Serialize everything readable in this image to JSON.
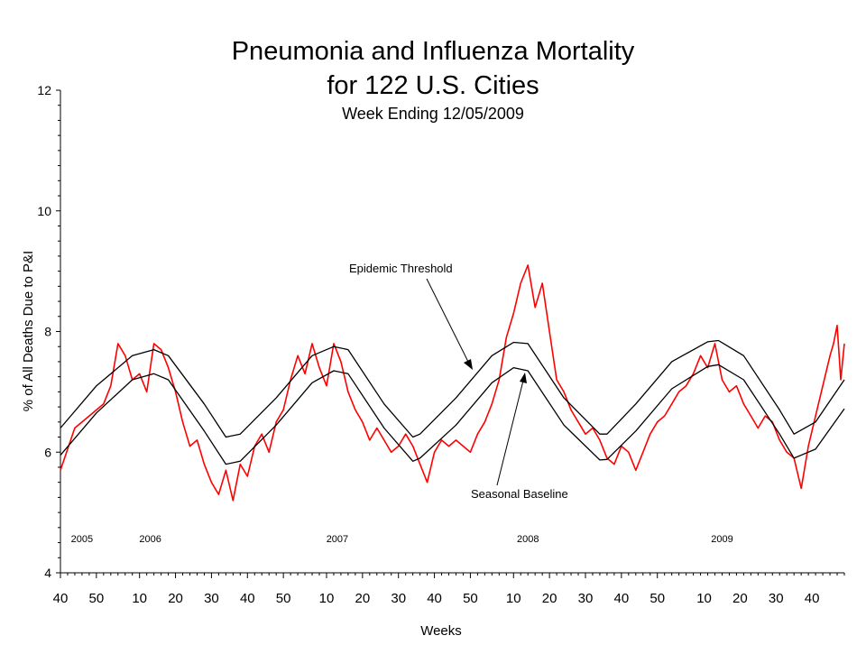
{
  "chart_data": {
    "type": "line",
    "title": "Pneumonia and Influenza Mortality",
    "title_line2": "for 122 U.S. Cities",
    "subtitle": "Week Ending 12/05/2009",
    "xlabel": "Weeks",
    "ylabel": "% of All Deaths Due to P&I",
    "ylim": [
      4,
      12
    ],
    "y_ticks": [
      "4",
      "6",
      "8",
      "10",
      "12"
    ],
    "x_range_week_index": [
      0,
      218
    ],
    "x_ticks": [
      {
        "label": "40",
        "week_index": 0
      },
      {
        "label": "50",
        "week_index": 10
      },
      {
        "label": "10",
        "week_index": 22
      },
      {
        "label": "20",
        "week_index": 32
      },
      {
        "label": "30",
        "week_index": 42
      },
      {
        "label": "40",
        "week_index": 52
      },
      {
        "label": "50",
        "week_index": 62
      },
      {
        "label": "10",
        "week_index": 74
      },
      {
        "label": "20",
        "week_index": 84
      },
      {
        "label": "30",
        "week_index": 94
      },
      {
        "label": "40",
        "week_index": 104
      },
      {
        "label": "50",
        "week_index": 114
      },
      {
        "label": "10",
        "week_index": 126
      },
      {
        "label": "20",
        "week_index": 136
      },
      {
        "label": "30",
        "week_index": 146
      },
      {
        "label": "40",
        "week_index": 156
      },
      {
        "label": "50",
        "week_index": 166
      },
      {
        "label": "10",
        "week_index": 179
      },
      {
        "label": "20",
        "week_index": 189
      },
      {
        "label": "30",
        "week_index": 199
      },
      {
        "label": "40",
        "week_index": 209
      }
    ],
    "year_labels": [
      {
        "label": "2005",
        "week_index": 6
      },
      {
        "label": "2006",
        "week_index": 25
      },
      {
        "label": "2007",
        "week_index": 77
      },
      {
        "label": "2008",
        "week_index": 130
      },
      {
        "label": "2009",
        "week_index": 184
      }
    ],
    "annotations": {
      "epidemic_threshold": "Epidemic Threshold",
      "seasonal_baseline": "Seasonal Baseline"
    },
    "colors": {
      "observed": "#ff0000",
      "threshold": "#000000",
      "baseline": "#000000"
    },
    "series": [
      {
        "key": "observed",
        "x": [
          0,
          4,
          8,
          12,
          14,
          16,
          18,
          20,
          22,
          24,
          26,
          28,
          30,
          32,
          34,
          36,
          38,
          40,
          42,
          44,
          46,
          48,
          50,
          52,
          54,
          56,
          58,
          60,
          62,
          64,
          66,
          68,
          70,
          72,
          74,
          76,
          78,
          80,
          82,
          84,
          86,
          88,
          90,
          92,
          94,
          96,
          98,
          100,
          102,
          104,
          106,
          108,
          110,
          112,
          114,
          116,
          118,
          120,
          122,
          124,
          126,
          128,
          130,
          132,
          134,
          136,
          138,
          140,
          142,
          144,
          146,
          148,
          150,
          152,
          154,
          156,
          158,
          160,
          162,
          164,
          166,
          168,
          170,
          172,
          174,
          176,
          178,
          180,
          182,
          184,
          186,
          188,
          190,
          192,
          194,
          196,
          198,
          200,
          202,
          204,
          206,
          208,
          210,
          212,
          214,
          215,
          216,
          217,
          218
        ],
        "values": [
          5.7,
          6.4,
          6.6,
          6.8,
          7.1,
          7.8,
          7.6,
          7.2,
          7.3,
          7.0,
          7.8,
          7.7,
          7.4,
          7.0,
          6.5,
          6.1,
          6.2,
          5.8,
          5.5,
          5.3,
          5.7,
          5.2,
          5.8,
          5.6,
          6.1,
          6.3,
          6.0,
          6.5,
          6.7,
          7.2,
          7.6,
          7.3,
          7.8,
          7.4,
          7.1,
          7.8,
          7.5,
          7.0,
          6.7,
          6.5,
          6.2,
          6.4,
          6.2,
          6.0,
          6.1,
          6.3,
          6.1,
          5.8,
          5.5,
          6.0,
          6.2,
          6.1,
          6.2,
          6.1,
          6.0,
          6.3,
          6.5,
          6.8,
          7.2,
          7.9,
          8.3,
          8.8,
          9.1,
          8.4,
          8.8,
          8.0,
          7.2,
          7.0,
          6.7,
          6.5,
          6.3,
          6.4,
          6.2,
          5.9,
          5.8,
          6.1,
          6.0,
          5.7,
          6.0,
          6.3,
          6.5,
          6.6,
          6.8,
          7.0,
          7.1,
          7.3,
          7.6,
          7.4,
          7.8,
          7.2,
          7.0,
          7.1,
          6.8,
          6.6,
          6.4,
          6.6,
          6.5,
          6.2,
          6.0,
          5.9,
          5.4,
          6.1,
          6.6,
          7.1,
          7.6,
          7.8,
          8.1,
          7.2,
          7.8
        ]
      },
      {
        "key": "threshold",
        "x": [
          0,
          10,
          20,
          26,
          30,
          40,
          46,
          50,
          60,
          70,
          76,
          80,
          90,
          98,
          100,
          110,
          120,
          126,
          130,
          140,
          150,
          152,
          160,
          170,
          180,
          183,
          190,
          200,
          204,
          210,
          218
        ],
        "values": [
          6.4,
          7.1,
          7.6,
          7.7,
          7.6,
          6.8,
          6.25,
          6.3,
          6.9,
          7.6,
          7.75,
          7.7,
          6.8,
          6.25,
          6.3,
          6.9,
          7.6,
          7.82,
          7.8,
          6.9,
          6.3,
          6.3,
          6.8,
          7.5,
          7.83,
          7.85,
          7.6,
          6.7,
          6.3,
          6.5,
          7.2
        ]
      },
      {
        "key": "baseline",
        "x": [
          0,
          10,
          20,
          26,
          30,
          40,
          46,
          50,
          60,
          70,
          76,
          80,
          90,
          98,
          100,
          110,
          120,
          126,
          130,
          140,
          150,
          152,
          160,
          170,
          180,
          183,
          190,
          200,
          204,
          210,
          218
        ],
        "values": [
          5.95,
          6.65,
          7.2,
          7.3,
          7.2,
          6.35,
          5.8,
          5.85,
          6.45,
          7.15,
          7.35,
          7.3,
          6.4,
          5.85,
          5.9,
          6.45,
          7.15,
          7.4,
          7.35,
          6.45,
          5.87,
          5.88,
          6.35,
          7.05,
          7.42,
          7.45,
          7.2,
          6.3,
          5.9,
          6.05,
          6.72
        ]
      }
    ]
  }
}
